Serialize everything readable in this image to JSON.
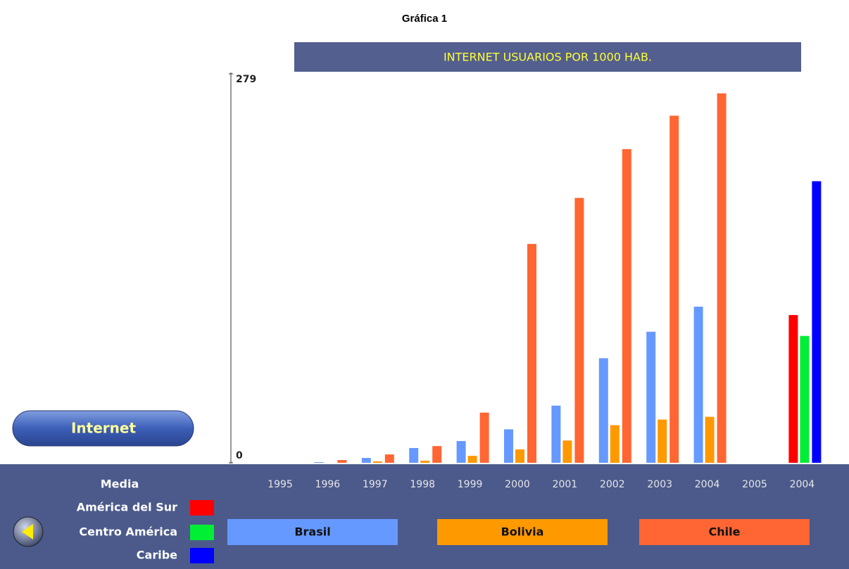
{
  "page": {
    "heading": "Gráfica 1",
    "button": "Internet",
    "legend_title": "Media"
  },
  "chart_data": [
    {
      "type": "bar",
      "title": "INTERNET USUARIOS POR 1000 HAB.",
      "categories": [
        "1995",
        "1996",
        "1997",
        "1998",
        "1999",
        "2000",
        "2001",
        "2002",
        "2003",
        "2004",
        "2005"
      ],
      "series": [
        {
          "name": "Brasil",
          "color": "#6699ff",
          "values": [
            0,
            0.5,
            3.5,
            10.6,
            15.6,
            24,
            41,
            75,
            94,
            112,
            null
          ]
        },
        {
          "name": "Bolivia",
          "color": "#ff9900",
          "values": [
            0,
            0,
            1,
            1.5,
            5,
            9.6,
            16,
            27,
            31,
            33,
            null
          ]
        },
        {
          "name": "Chile",
          "color": "#ff6633",
          "values": [
            0,
            2,
            6,
            12,
            36,
            157,
            190,
            225,
            249,
            265,
            null
          ]
        }
      ],
      "ylim": [
        0,
        279
      ],
      "yticks": [
        0,
        279
      ]
    },
    {
      "type": "bar",
      "categories": [
        "2004"
      ],
      "series": [
        {
          "name": "América del Sur",
          "color": "#ff0000",
          "values": [
            106
          ]
        },
        {
          "name": "Centro América",
          "color": "#00ee33",
          "values": [
            91
          ]
        },
        {
          "name": "Caribe",
          "color": "#0000ff",
          "values": [
            202
          ]
        }
      ],
      "ylim": [
        0,
        279
      ]
    }
  ]
}
